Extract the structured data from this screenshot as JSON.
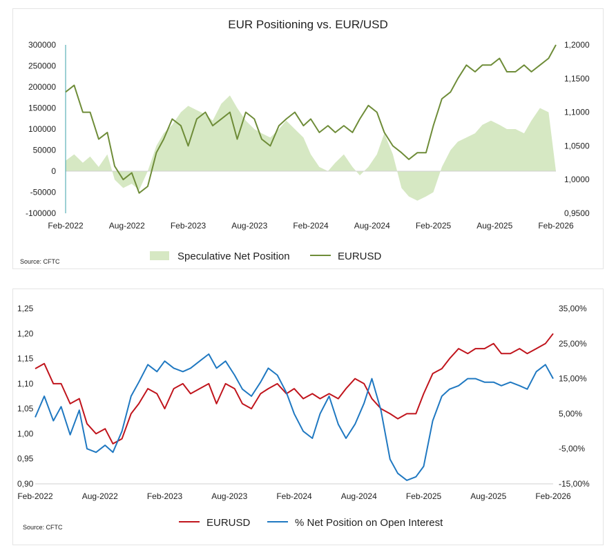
{
  "chart_data": [
    {
      "type": "area+line",
      "title": "EUR Positioning vs. EUR/USD",
      "source": "Source: CFTC",
      "x_ticks": [
        "Feb-2022",
        "Aug-2022",
        "Feb-2023",
        "Aug-2023",
        "Feb-2024",
        "Aug-2024",
        "Feb-2025",
        "Aug-2025",
        "Feb-2026"
      ],
      "y_left_ticks": [
        "300000",
        "250000",
        "200000",
        "150000",
        "100000",
        "50000",
        "0",
        "-50000",
        "-100000"
      ],
      "y_left_range": [
        -100000,
        300000
      ],
      "y_right_ticks": [
        "1,2000",
        "1,1500",
        "1,1000",
        "1,0500",
        "1,0000",
        "0,9500"
      ],
      "y_right_range": [
        0.95,
        1.2
      ],
      "legend": [
        "Speculative Net Position",
        "EURUSD"
      ],
      "colors": {
        "area": "#d6e8c3",
        "line": "#6e8c38"
      },
      "series": [
        {
          "name": "Speculative Net Position",
          "kind": "area",
          "x": [
            2022.08,
            2022.15,
            2022.22,
            2022.28,
            2022.35,
            2022.42,
            2022.48,
            2022.55,
            2022.62,
            2022.68,
            2022.75,
            2022.82,
            2022.88,
            2022.95,
            2023.02,
            2023.08,
            2023.15,
            2023.22,
            2023.28,
            2023.35,
            2023.42,
            2023.48,
            2023.55,
            2023.62,
            2023.68,
            2023.75,
            2023.82,
            2023.88,
            2023.95,
            2024.02,
            2024.08,
            2024.15,
            2024.22,
            2024.28,
            2024.35,
            2024.42,
            2024.48,
            2024.55,
            2024.62,
            2024.68,
            2024.75,
            2024.82,
            2024.88,
            2024.95,
            2025.02,
            2025.08,
            2025.15,
            2025.22,
            2025.28,
            2025.35,
            2025.42,
            2025.48,
            2025.55,
            2025.62,
            2025.68,
            2025.75,
            2025.82,
            2025.88,
            2025.95,
            2026.02,
            2026.08
          ],
          "y": [
            25000,
            40000,
            20000,
            35000,
            10000,
            40000,
            -20000,
            -40000,
            -30000,
            -45000,
            0,
            60000,
            90000,
            110000,
            140000,
            155000,
            145000,
            135000,
            120000,
            160000,
            180000,
            150000,
            120000,
            100000,
            90000,
            80000,
            100000,
            120000,
            100000,
            80000,
            40000,
            10000,
            0,
            20000,
            40000,
            10000,
            -10000,
            10000,
            40000,
            90000,
            40000,
            -40000,
            -60000,
            -70000,
            -60000,
            -50000,
            10000,
            50000,
            70000,
            80000,
            90000,
            110000,
            120000,
            110000,
            100000,
            100000,
            90000,
            120000,
            150000,
            140000,
            0
          ]
        },
        {
          "name": "EURUSD",
          "kind": "line",
          "x": [
            2022.08,
            2022.15,
            2022.22,
            2022.28,
            2022.35,
            2022.42,
            2022.48,
            2022.55,
            2022.62,
            2022.68,
            2022.75,
            2022.82,
            2022.88,
            2022.95,
            2023.02,
            2023.08,
            2023.15,
            2023.22,
            2023.28,
            2023.35,
            2023.42,
            2023.48,
            2023.55,
            2023.62,
            2023.68,
            2023.75,
            2023.82,
            2023.88,
            2023.95,
            2024.02,
            2024.08,
            2024.15,
            2024.22,
            2024.28,
            2024.35,
            2024.42,
            2024.48,
            2024.55,
            2024.62,
            2024.68,
            2024.75,
            2024.82,
            2024.88,
            2024.95,
            2025.02,
            2025.08,
            2025.15,
            2025.22,
            2025.28,
            2025.35,
            2025.42,
            2025.48,
            2025.55,
            2025.62,
            2025.68,
            2025.75,
            2025.82,
            2025.88,
            2025.95,
            2026.02,
            2026.08
          ],
          "y": [
            1.13,
            1.14,
            1.1,
            1.1,
            1.06,
            1.07,
            1.02,
            1.0,
            1.01,
            0.98,
            0.99,
            1.04,
            1.06,
            1.09,
            1.08,
            1.05,
            1.09,
            1.1,
            1.08,
            1.09,
            1.1,
            1.06,
            1.1,
            1.09,
            1.06,
            1.05,
            1.08,
            1.09,
            1.1,
            1.08,
            1.09,
            1.07,
            1.08,
            1.07,
            1.08,
            1.07,
            1.09,
            1.11,
            1.1,
            1.07,
            1.05,
            1.04,
            1.03,
            1.04,
            1.04,
            1.08,
            1.12,
            1.13,
            1.15,
            1.17,
            1.16,
            1.17,
            1.17,
            1.18,
            1.16,
            1.16,
            1.17,
            1.16,
            1.17,
            1.18,
            1.2
          ]
        }
      ]
    },
    {
      "type": "line",
      "title": "",
      "source": "Source: CFTC",
      "x_ticks": [
        "Feb-2022",
        "Aug-2022",
        "Feb-2023",
        "Aug-2023",
        "Feb-2024",
        "Aug-2024",
        "Feb-2025",
        "Aug-2025",
        "Feb-2026"
      ],
      "y_left_ticks": [
        "1,25",
        "1,20",
        "1,15",
        "1,10",
        "1,05",
        "1,00",
        "0,95",
        "0,90"
      ],
      "y_left_range": [
        0.9,
        1.25
      ],
      "y_right_ticks": [
        "35,00%",
        "25,00%",
        "15,00%",
        "5,00%",
        "-5,00%",
        "-15,00%"
      ],
      "y_right_range": [
        -15,
        35
      ],
      "legend": [
        "EURUSD",
        "% Net Position on Open Interest"
      ],
      "colors": {
        "eurusd": "#c0141c",
        "pct": "#1f78c1"
      },
      "series": [
        {
          "name": "EURUSD",
          "axis": "left",
          "x": [
            2022.08,
            2022.15,
            2022.22,
            2022.28,
            2022.35,
            2022.42,
            2022.48,
            2022.55,
            2022.62,
            2022.68,
            2022.75,
            2022.82,
            2022.88,
            2022.95,
            2023.02,
            2023.08,
            2023.15,
            2023.22,
            2023.28,
            2023.35,
            2023.42,
            2023.48,
            2023.55,
            2023.62,
            2023.68,
            2023.75,
            2023.82,
            2023.88,
            2023.95,
            2024.02,
            2024.08,
            2024.15,
            2024.22,
            2024.28,
            2024.35,
            2024.42,
            2024.48,
            2024.55,
            2024.62,
            2024.68,
            2024.75,
            2024.82,
            2024.88,
            2024.95,
            2025.02,
            2025.08,
            2025.15,
            2025.22,
            2025.28,
            2025.35,
            2025.42,
            2025.48,
            2025.55,
            2025.62,
            2025.68,
            2025.75,
            2025.82,
            2025.88,
            2025.95,
            2026.02,
            2026.08
          ],
          "y": [
            1.13,
            1.14,
            1.1,
            1.1,
            1.06,
            1.07,
            1.02,
            1.0,
            1.01,
            0.98,
            0.99,
            1.04,
            1.06,
            1.09,
            1.08,
            1.05,
            1.09,
            1.1,
            1.08,
            1.09,
            1.1,
            1.06,
            1.1,
            1.09,
            1.06,
            1.05,
            1.08,
            1.09,
            1.1,
            1.08,
            1.09,
            1.07,
            1.08,
            1.07,
            1.08,
            1.07,
            1.09,
            1.11,
            1.1,
            1.07,
            1.05,
            1.04,
            1.03,
            1.04,
            1.04,
            1.08,
            1.12,
            1.13,
            1.15,
            1.17,
            1.16,
            1.17,
            1.17,
            1.18,
            1.16,
            1.16,
            1.17,
            1.16,
            1.17,
            1.18,
            1.2
          ]
        },
        {
          "name": "% Net Position on Open Interest",
          "axis": "right",
          "x": [
            2022.08,
            2022.15,
            2022.22,
            2022.28,
            2022.35,
            2022.42,
            2022.48,
            2022.55,
            2022.62,
            2022.68,
            2022.75,
            2022.82,
            2022.88,
            2022.95,
            2023.02,
            2023.08,
            2023.15,
            2023.22,
            2023.28,
            2023.35,
            2023.42,
            2023.48,
            2023.55,
            2023.62,
            2023.68,
            2023.75,
            2023.82,
            2023.88,
            2023.95,
            2024.02,
            2024.08,
            2024.15,
            2024.22,
            2024.28,
            2024.35,
            2024.42,
            2024.48,
            2024.55,
            2024.62,
            2024.68,
            2024.75,
            2024.82,
            2024.88,
            2024.95,
            2025.02,
            2025.08,
            2025.15,
            2025.22,
            2025.28,
            2025.35,
            2025.42,
            2025.48,
            2025.55,
            2025.62,
            2025.68,
            2025.75,
            2025.82,
            2025.88,
            2025.95,
            2026.02,
            2026.08
          ],
          "y": [
            4,
            10,
            3,
            7,
            -1,
            6,
            -5,
            -6,
            -4,
            -6,
            0,
            10,
            14,
            19,
            17,
            20,
            18,
            17,
            18,
            20,
            22,
            18,
            20,
            16,
            12,
            10,
            14,
            18,
            16,
            11,
            5,
            0,
            -2,
            5,
            10,
            2,
            -2,
            2,
            8,
            15,
            6,
            -8,
            -12,
            -14,
            -13,
            -10,
            3,
            10,
            12,
            13,
            15,
            15,
            14,
            14,
            13,
            14,
            13,
            12,
            17,
            19,
            15
          ]
        }
      ]
    }
  ]
}
